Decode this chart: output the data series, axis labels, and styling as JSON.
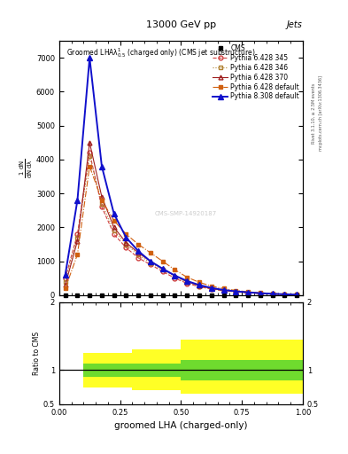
{
  "title_top": "13000 GeV pp",
  "title_right": "Jets",
  "xlabel": "groomed LHA (charged-only)",
  "watermark": "CMS-SMP-14920187",
  "right_label1": "Rivet 3.1.10, ≥ 2.5M events",
  "right_label2": "mcplots.cern.ch [arXiv:1306.3436]",
  "x_data": [
    0.025,
    0.075,
    0.125,
    0.175,
    0.225,
    0.275,
    0.325,
    0.375,
    0.425,
    0.475,
    0.525,
    0.575,
    0.625,
    0.675,
    0.725,
    0.775,
    0.825,
    0.875,
    0.925,
    0.975
  ],
  "py6_345": [
    500,
    1800,
    4200,
    2600,
    1800,
    1400,
    1100,
    900,
    700,
    500,
    350,
    250,
    180,
    130,
    100,
    70,
    50,
    30,
    20,
    10
  ],
  "py6_346": [
    400,
    1700,
    4100,
    2700,
    1900,
    1500,
    1200,
    950,
    750,
    550,
    380,
    270,
    190,
    140,
    100,
    75,
    52,
    35,
    22,
    12
  ],
  "py6_370": [
    300,
    1600,
    4500,
    2900,
    2000,
    1550,
    1250,
    1000,
    780,
    580,
    400,
    285,
    200,
    145,
    105,
    78,
    55,
    38,
    25,
    13
  ],
  "py6_default": [
    200,
    1200,
    3800,
    2800,
    2200,
    1800,
    1500,
    1250,
    1000,
    750,
    530,
    380,
    270,
    195,
    140,
    100,
    72,
    50,
    32,
    17
  ],
  "py8_default": [
    600,
    2800,
    7000,
    3800,
    2400,
    1700,
    1300,
    1000,
    780,
    580,
    420,
    300,
    215,
    155,
    115,
    85,
    60,
    42,
    28,
    15
  ],
  "ylim": [
    0,
    7500
  ],
  "yticks": [
    0,
    1000,
    2000,
    3000,
    4000,
    5000,
    6000,
    7000
  ],
  "xlim": [
    0,
    1
  ],
  "ratio_ylim": [
    0.5,
    2.0
  ],
  "color_py6_345": "#d04040",
  "color_py6_346": "#b08030",
  "color_py6_370": "#a02020",
  "color_py6_default": "#d06010",
  "color_py8_default": "#1010cc",
  "color_cms": "#000000",
  "green_band": {
    "x": [
      0.0,
      0.1,
      0.1,
      0.5,
      0.5,
      1.0
    ],
    "low": [
      1.0,
      1.0,
      0.9,
      0.9,
      0.85,
      0.85
    ],
    "high": [
      1.0,
      1.0,
      1.1,
      1.1,
      1.15,
      1.15
    ]
  },
  "yellow_band": {
    "x": [
      0.0,
      0.1,
      0.1,
      0.3,
      0.3,
      0.5,
      0.5,
      1.0
    ],
    "low": [
      1.0,
      1.0,
      0.75,
      0.75,
      0.7,
      0.7,
      0.65,
      0.65
    ],
    "high": [
      1.0,
      1.0,
      1.25,
      1.25,
      1.3,
      1.3,
      1.45,
      1.45
    ]
  }
}
